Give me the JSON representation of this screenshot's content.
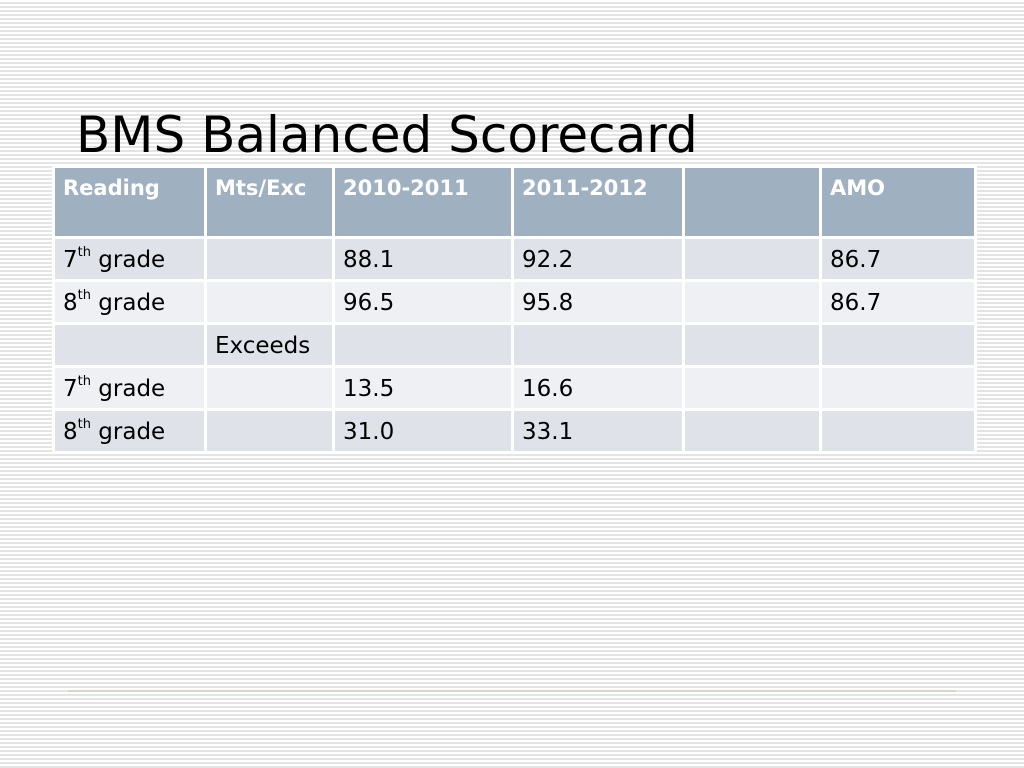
{
  "slide": {
    "title": "BMS Balanced Scorecard"
  },
  "table": {
    "headers": [
      "Reading",
      "Mts/Exc",
      "2010-2011",
      "2011-2012",
      "",
      "AMO"
    ],
    "rows": [
      {
        "grade_num": "7",
        "grade_sup": "th",
        "grade_word": "grade",
        "col2": "",
        "col3": "88.1",
        "col4": "92.2",
        "col5": "",
        "col6": "86.7"
      },
      {
        "grade_num": "8",
        "grade_sup": "th",
        "grade_word": "grade",
        "col2": "",
        "col3": "96.5",
        "col4": "95.8",
        "col5": "",
        "col6": "86.7"
      },
      {
        "grade_num": "",
        "grade_sup": "",
        "grade_word": "",
        "col2": "Exceeds",
        "col3": "",
        "col4": "",
        "col5": "",
        "col6": ""
      },
      {
        "grade_num": "7",
        "grade_sup": "th",
        "grade_word": "grade",
        "col2": "",
        "col3": "13.5",
        "col4": "16.6",
        "col5": "",
        "col6": ""
      },
      {
        "grade_num": "8",
        "grade_sup": "th",
        "grade_word": "grade",
        "col2": "",
        "col3": "31.0",
        "col4": "33.1",
        "col5": "",
        "col6": ""
      }
    ]
  },
  "colors": {
    "header_bg": "#9fb0c1",
    "row_odd_bg": "#dfe2e8",
    "row_even_bg": "#eff0f3"
  }
}
